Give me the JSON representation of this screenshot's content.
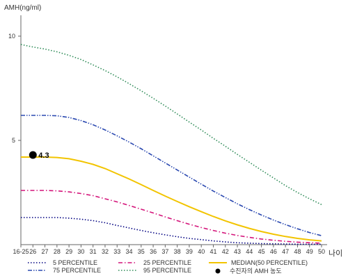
{
  "chart_data": {
    "type": "line",
    "title": "",
    "ylabel": "AMH(ng/ml)",
    "xlabel": "나이",
    "ylim": [
      0,
      11
    ],
    "y_ticks": [
      "5",
      "10"
    ],
    "y_tick_values": [
      5,
      10
    ],
    "x_tick_labels": [
      "16-25",
      "26",
      "27",
      "28",
      "29",
      "30",
      "31",
      "32",
      "33",
      "34",
      "35",
      "36",
      "37",
      "38",
      "39",
      "40",
      "41",
      "42",
      "43",
      "44",
      "45",
      "46",
      "47",
      "48",
      "49",
      "50"
    ],
    "x": [
      25,
      26,
      27,
      28,
      29,
      30,
      31,
      32,
      33,
      34,
      35,
      36,
      37,
      38,
      39,
      40,
      41,
      42,
      43,
      44,
      45,
      46,
      47,
      48,
      49,
      50
    ],
    "series": [
      {
        "name": "5 PERCENTILE",
        "color": "#000080",
        "style": "dotted",
        "values": [
          1.3,
          1.3,
          1.3,
          1.3,
          1.27,
          1.22,
          1.15,
          1.05,
          0.92,
          0.8,
          0.68,
          0.57,
          0.47,
          0.38,
          0.3,
          0.24,
          0.18,
          0.13,
          0.09,
          0.07,
          0.05,
          0.04,
          0.03,
          0.02,
          0.02,
          0.02
        ]
      },
      {
        "name": "25 PERCENTILE",
        "color": "#d4147a",
        "style": "dashdot",
        "values": [
          2.6,
          2.6,
          2.6,
          2.58,
          2.53,
          2.45,
          2.35,
          2.2,
          2.05,
          1.88,
          1.7,
          1.52,
          1.33,
          1.15,
          0.98,
          0.82,
          0.68,
          0.55,
          0.44,
          0.35,
          0.27,
          0.21,
          0.16,
          0.12,
          0.09,
          0.07
        ]
      },
      {
        "name": "MEDIAN(50 PERCENTILE)",
        "color": "#f2c400",
        "style": "solid",
        "values": [
          4.2,
          4.2,
          4.2,
          4.18,
          4.12,
          4.0,
          3.85,
          3.65,
          3.4,
          3.15,
          2.88,
          2.6,
          2.33,
          2.07,
          1.82,
          1.58,
          1.35,
          1.14,
          0.95,
          0.78,
          0.63,
          0.5,
          0.39,
          0.3,
          0.23,
          0.18
        ]
      },
      {
        "name": "75 PERCENTILE",
        "color": "#2a48b0",
        "style": "dashdotdot",
        "values": [
          6.2,
          6.2,
          6.2,
          6.18,
          6.1,
          5.95,
          5.75,
          5.5,
          5.22,
          4.92,
          4.6,
          4.26,
          3.92,
          3.58,
          3.24,
          2.9,
          2.57,
          2.26,
          1.96,
          1.68,
          1.42,
          1.18,
          0.96,
          0.76,
          0.58,
          0.43
        ]
      },
      {
        "name": "95 PERCENTILE",
        "color": "#2e8b57",
        "style": "dotted",
        "values": [
          9.6,
          9.48,
          9.38,
          9.25,
          9.08,
          8.88,
          8.62,
          8.35,
          8.05,
          7.72,
          7.38,
          7.02,
          6.65,
          6.27,
          5.88,
          5.5,
          5.1,
          4.72,
          4.33,
          3.95,
          3.57,
          3.2,
          2.83,
          2.5,
          2.2,
          1.92
        ]
      }
    ],
    "annotation": {
      "label": "4.3",
      "x": 26,
      "y": 4.3
    },
    "legend_marker_label": "수진자의 AMH 농도",
    "legend_position": "bottom",
    "grid": false
  }
}
